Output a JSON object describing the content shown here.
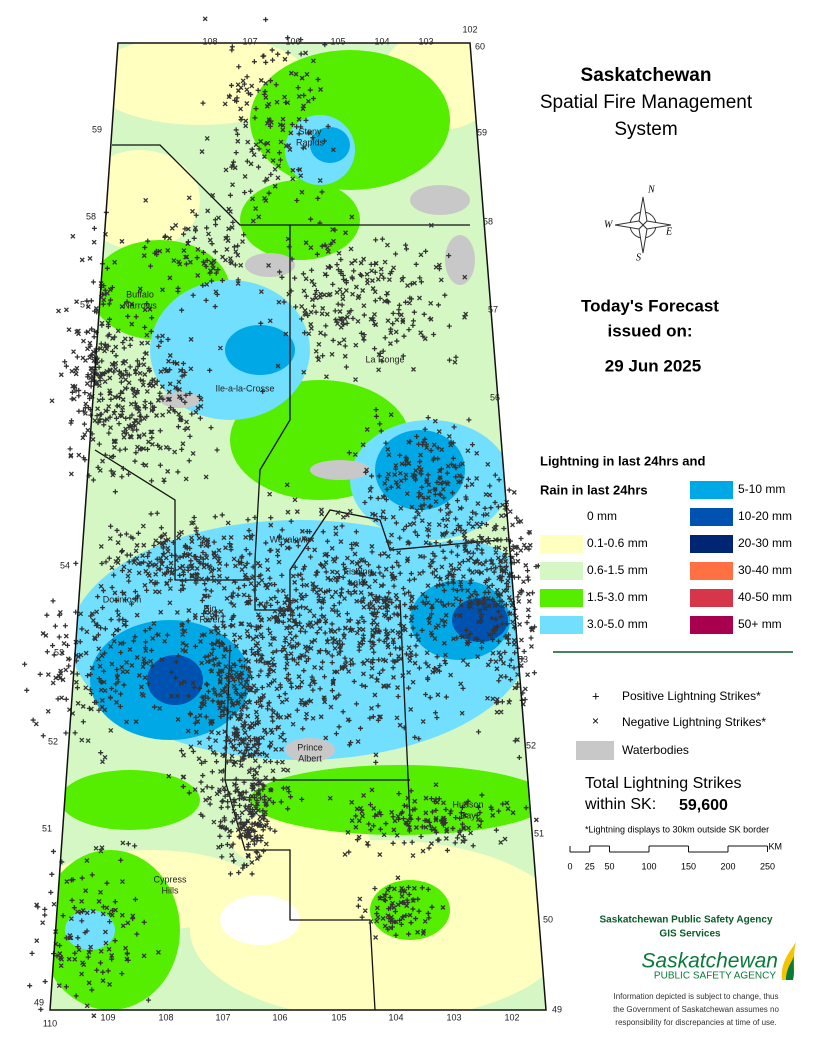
{
  "header": {
    "title": "Saskatchewan",
    "subtitle_lines": [
      "Spatial Fire Management",
      "System"
    ]
  },
  "forecast": {
    "line1": "Today's Forecast",
    "line2": "issued on:",
    "date": "29 Jun 2025"
  },
  "legend": {
    "heading_lines": [
      "Lightning in last 24hrs and",
      "Rain in last 24hrs"
    ],
    "rain_classes": [
      {
        "label": "0 mm",
        "color": "#ffffff"
      },
      {
        "label": "0.1-0.6 mm",
        "color": "#ffffc0"
      },
      {
        "label": "0.6-1.5 mm",
        "color": "#d4f7c4"
      },
      {
        "label": "1.5-3.0 mm",
        "color": "#55ee00"
      },
      {
        "label": "3.0-5.0 mm",
        "color": "#73dfff"
      },
      {
        "label": "5-10 mm",
        "color": "#00a9e6"
      },
      {
        "label": "10-20 mm",
        "color": "#0052b0"
      },
      {
        "label": "20-30 mm",
        "color": "#002673"
      },
      {
        "label": "30-40 mm",
        "color": "#ff7043"
      },
      {
        "label": "40-50 mm",
        "color": "#d7364a"
      },
      {
        "label": "50+ mm",
        "color": "#a8004f"
      }
    ],
    "symbols": [
      "Positive Lightning Strikes*",
      "Negative Lightning Strikes*",
      "Waterbodies"
    ]
  },
  "totals": {
    "line1": "Total Lightning Strikes",
    "line2": "within SK:",
    "count": "59,600",
    "note": "*Lightning displays to 30km outside SK border"
  },
  "scale": {
    "ticks": [
      0,
      25,
      50,
      100,
      150,
      200,
      250
    ],
    "unit": "KM"
  },
  "agency": {
    "name": "Saskatchewan Public Safety Agency",
    "unit": "GIS  Services",
    "logo_main": "Saskatchewan",
    "logo_sub": "PUBLIC SAFETY AGENCY",
    "disclaimer": [
      "Information depicted is subject to change, thus",
      "the Government of Saskatchewan assumes no",
      "responsibility for discrepancies at time of use."
    ]
  },
  "compass": [
    "N",
    "E",
    "S",
    "W"
  ],
  "map": {
    "places": [
      [
        "Stony",
        "Rapids"
      ],
      [
        "Buffalo",
        "Narrows"
      ],
      [
        "La Ronge"
      ],
      [
        "Ile-a-la-Crosse"
      ],
      [
        "Weyakwin"
      ],
      [
        "Fishing",
        "Lake"
      ],
      [
        "Dorintosh"
      ],
      [
        "Big",
        "River"
      ],
      [
        "Prince",
        "Albert"
      ],
      [
        "Hudson",
        "Bay"
      ],
      [
        "Cypress",
        "Hills"
      ]
    ],
    "lat_left": [
      59,
      58,
      57,
      54,
      53,
      52,
      51,
      49
    ],
    "lat_right": [
      59,
      58,
      57,
      56,
      53,
      52,
      51,
      50,
      49
    ],
    "lon_top": [
      108,
      107,
      106,
      105,
      104,
      103,
      102,
      60
    ],
    "lon_bottom": [
      110,
      109,
      108,
      107,
      106,
      105,
      104,
      103,
      102
    ]
  }
}
